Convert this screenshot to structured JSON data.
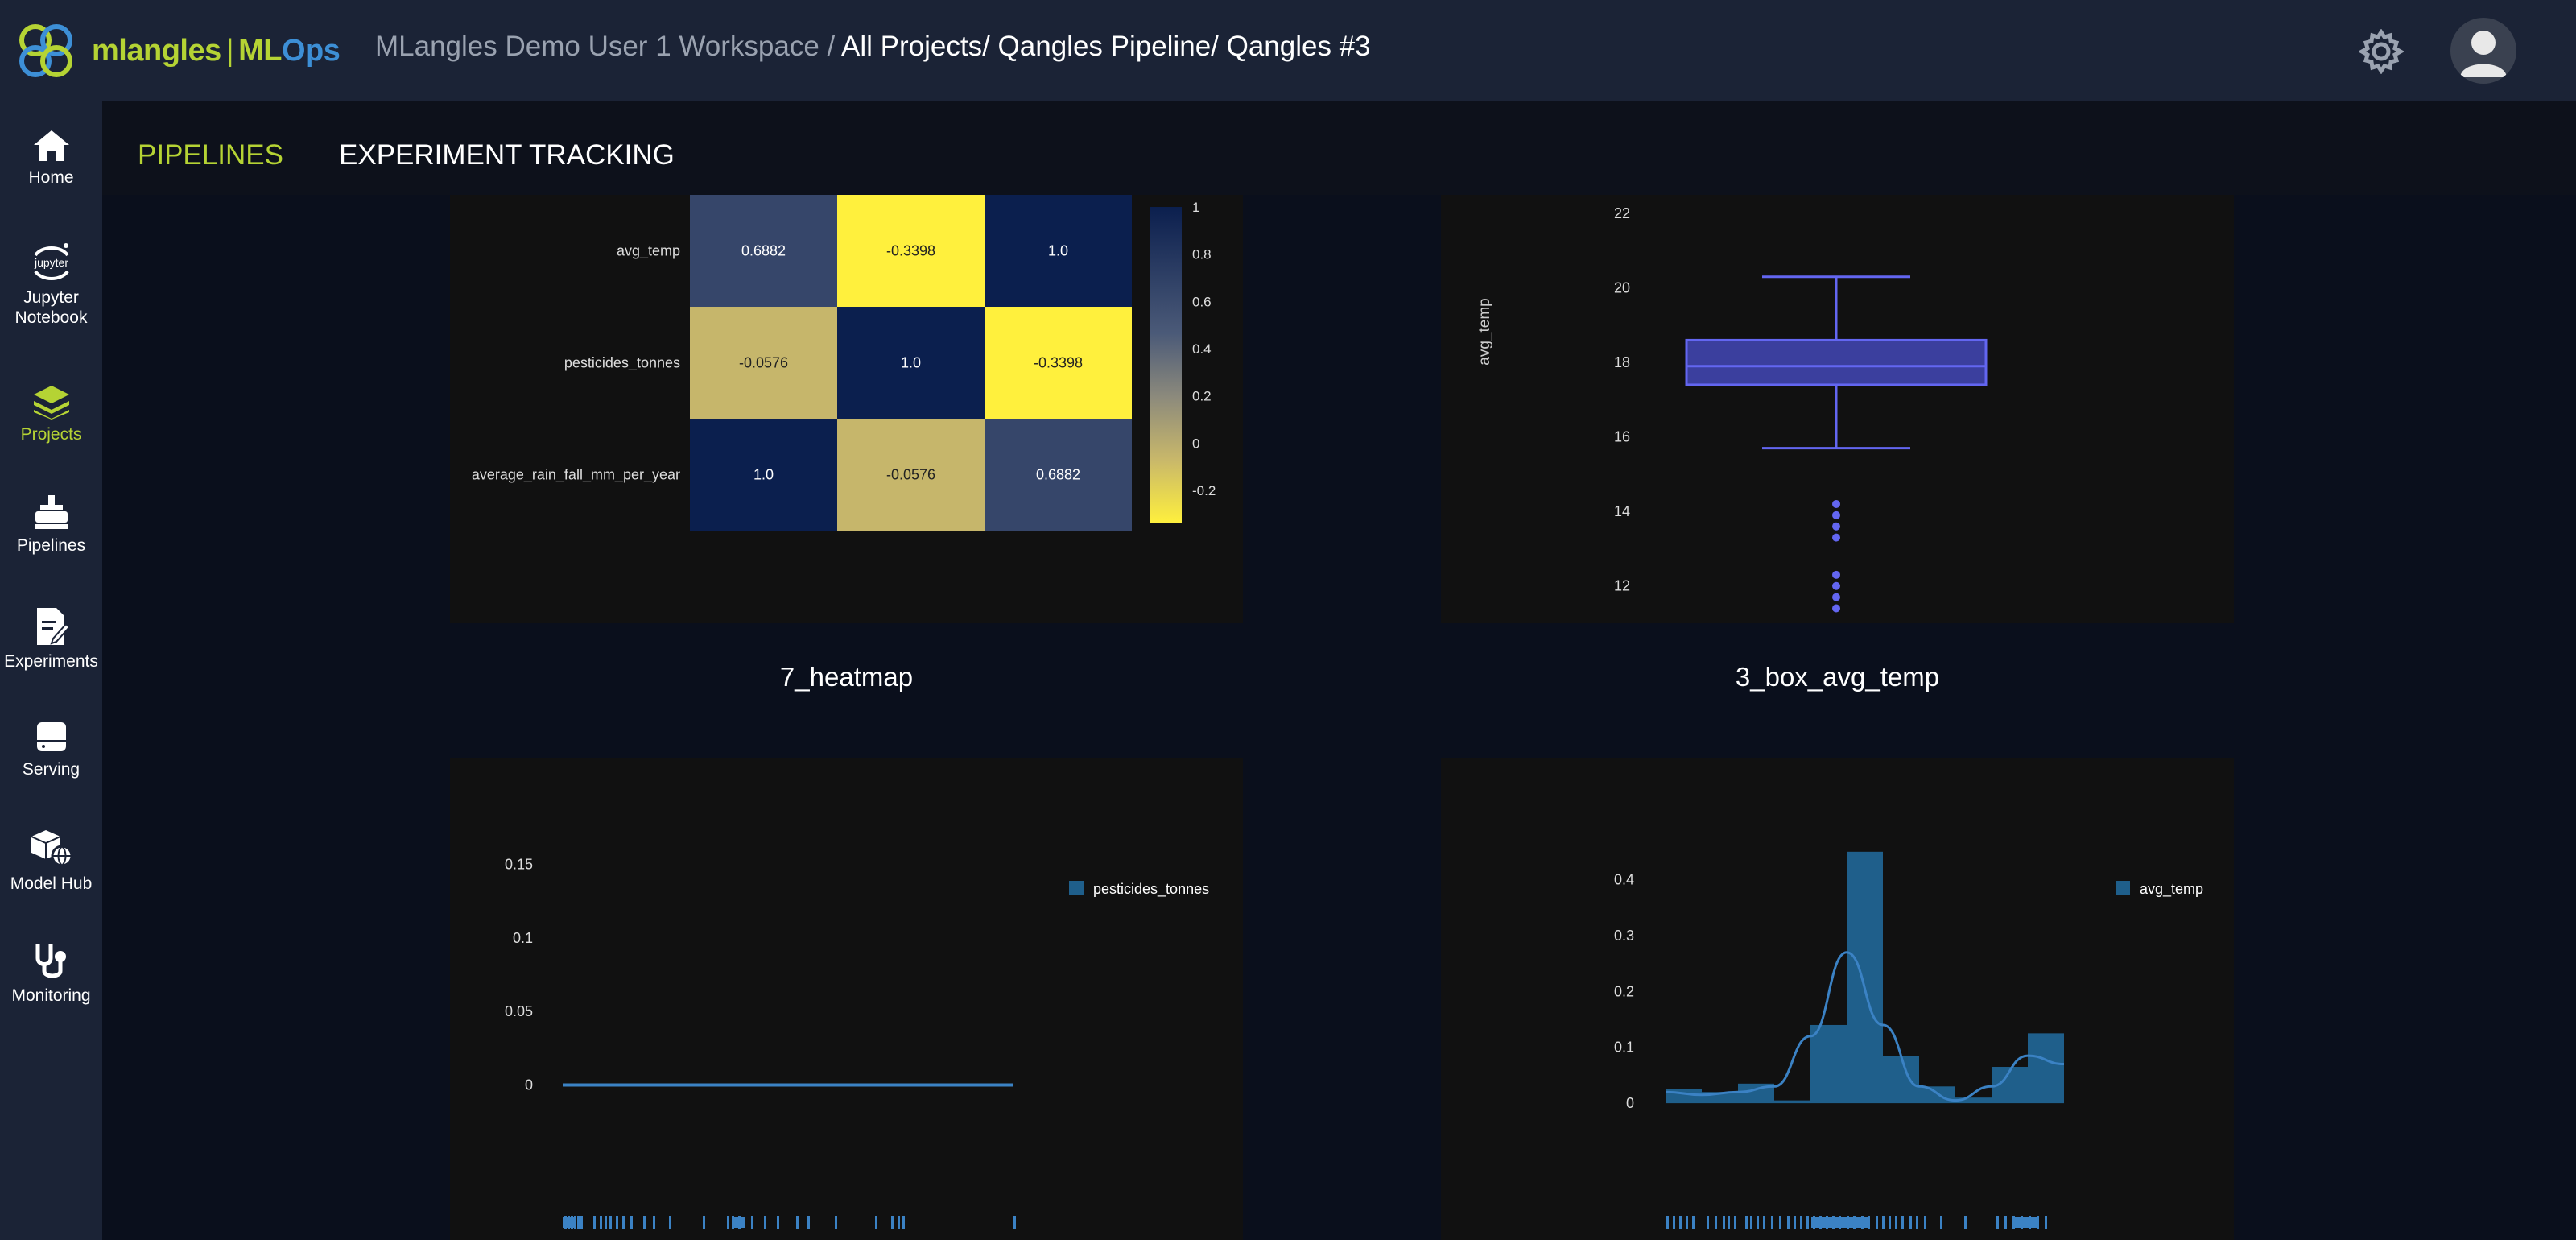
{
  "header": {
    "logo_text": "mlangles | MLOps",
    "workspace": "MLangles Demo User 1 Workspace /",
    "path": "All Projects/ Qangles Pipeline/ Qangles #3"
  },
  "sidebar": {
    "items": [
      {
        "label": "Home",
        "icon": "home-icon"
      },
      {
        "label": "Jupyter Notebook",
        "icon": "jupyter-icon"
      },
      {
        "label": "Projects",
        "icon": "layers-icon",
        "active": true
      },
      {
        "label": "Pipelines",
        "icon": "pipeline-icon"
      },
      {
        "label": "Experiments",
        "icon": "experiments-icon"
      },
      {
        "label": "Serving",
        "icon": "serving-icon"
      },
      {
        "label": "Model Hub",
        "icon": "model-hub-icon"
      },
      {
        "label": "Monitoring",
        "icon": "monitoring-icon"
      }
    ]
  },
  "tabs": [
    {
      "label": "PIPELINES",
      "active": true
    },
    {
      "label": "EXPERIMENT TRACKING",
      "active": false
    }
  ],
  "charts": {
    "heatmap": {
      "caption": "7_heatmap",
      "rows": [
        "avg_temp",
        "pesticides_tonnes",
        "average_rain_fall_mm_per_year"
      ],
      "cells": [
        [
          "0.6882",
          "-0.3398",
          "1.0"
        ],
        [
          "-0.0576",
          "1.0",
          "-0.3398"
        ],
        [
          "1.0",
          "-0.0576",
          "0.6882"
        ]
      ],
      "colorbar_ticks": [
        "1",
        "0.8",
        "0.6",
        "0.4",
        "0.2",
        "0",
        "-0.2"
      ]
    },
    "box": {
      "caption": "3_box_avg_temp",
      "ylabel": "avg_temp",
      "yticks": [
        "22",
        "20",
        "18",
        "16",
        "14",
        "12"
      ]
    },
    "dist_pesticides": {
      "legend": "pesticides_tonnes",
      "yticks": [
        "0.15",
        "0.1",
        "0.05",
        "0"
      ]
    },
    "dist_temp": {
      "legend": "avg_temp",
      "yticks": [
        "0.4",
        "0.3",
        "0.2",
        "0.1",
        "0"
      ]
    }
  },
  "chart_data": [
    {
      "type": "heatmap",
      "rows": [
        "avg_temp",
        "pesticides_tonnes",
        "average_rain_fall_mm_per_year"
      ],
      "values": [
        [
          0.6882,
          -0.3398,
          1.0
        ],
        [
          -0.0576,
          1.0,
          -0.3398
        ],
        [
          1.0,
          -0.0576,
          0.6882
        ]
      ],
      "colorbar_range": [
        -0.3398,
        1
      ]
    },
    {
      "type": "box",
      "ylabel": "avg_temp",
      "ylim": [
        11,
        22.5
      ],
      "whisker_low": 15.7,
      "q1": 17.4,
      "median": 17.9,
      "q3": 18.6,
      "whisker_high": 20.3,
      "outliers": [
        14.2,
        13.9,
        13.6,
        13.3,
        12.3,
        12.0,
        11.7,
        11.4
      ]
    },
    {
      "type": "area",
      "legend": "pesticides_tonnes",
      "ylim": [
        -0.02,
        0.17
      ],
      "density_value": 0
    },
    {
      "type": "bar",
      "legend": "avg_temp",
      "ylim": [
        -0.02,
        0.48
      ],
      "bars": [
        0.025,
        0.02,
        0.035,
        0.005,
        0.14,
        0.45,
        0.085,
        0.03,
        0.01,
        0.065,
        0.125
      ],
      "curve": [
        0.02,
        0.015,
        0.02,
        0.03,
        0.12,
        0.27,
        0.14,
        0.03,
        0.005,
        0.03,
        0.085,
        0.07
      ]
    }
  ],
  "colors": {
    "accent": "#b5d334",
    "bar": "#1f5f8b",
    "line": "#3b82c4",
    "box": "#6366f1"
  }
}
